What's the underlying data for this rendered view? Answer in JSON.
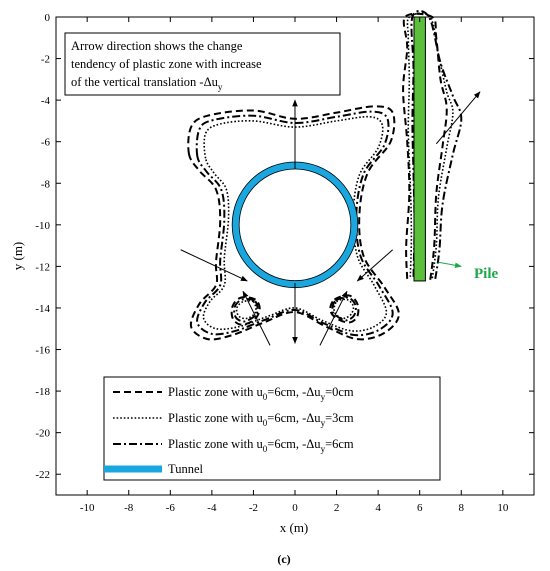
{
  "chart_data": {
    "type": "line",
    "title": "",
    "xlabel": "x (m)",
    "ylabel": "y (m)",
    "xlim": [
      -11.5,
      11.5
    ],
    "ylim": [
      -23,
      0
    ],
    "xticks": [
      -10,
      -8,
      -6,
      -4,
      -2,
      0,
      2,
      4,
      6,
      8,
      10
    ],
    "yticks": [
      0,
      -2,
      -4,
      -6,
      -8,
      -10,
      -12,
      -14,
      -16,
      -18,
      -20,
      -22
    ],
    "grid": false,
    "legend_position": "bottom-center",
    "note": {
      "lines": [
        "Arrow direction shows the change",
        "tendency of plastic zone with increase",
        "of the vertical translation -Δu"
      ],
      "subscript": "y"
    },
    "tunnel": {
      "center": [
        0,
        -10
      ],
      "radius": 3.0,
      "color": "#1aa7e0"
    },
    "pile": {
      "x": 6.0,
      "top": 0,
      "bottom": -12.7,
      "width": 0.55,
      "color": "#5cbf3c",
      "label": "Pile",
      "label_color": "#1fa84b"
    },
    "series": [
      {
        "name": "Plastic zone with u0=6cm, -Δuy=0cm",
        "legend_main": "Plastic zone with u",
        "legend_sub1": "0",
        "legend_mid": "=6cm, -Δu",
        "legend_sub2": "y",
        "legend_end": "=0cm",
        "style": "dashed",
        "outline": [
          [
            -5.1,
            -6.6
          ],
          [
            -5.0,
            -5.3
          ],
          [
            -4.2,
            -4.75
          ],
          [
            -2.0,
            -4.5
          ],
          [
            0.0,
            -4.9
          ],
          [
            2.0,
            -4.6
          ],
          [
            3.8,
            -4.3
          ],
          [
            4.7,
            -4.6
          ],
          [
            4.6,
            -6.0
          ],
          [
            3.5,
            -7.5
          ],
          [
            3.1,
            -9.5
          ],
          [
            3.3,
            -11.5
          ],
          [
            4.3,
            -13.0
          ],
          [
            5.0,
            -14.3
          ],
          [
            4.3,
            -15.2
          ],
          [
            3.0,
            -15.5
          ],
          [
            1.5,
            -14.9
          ],
          [
            0.0,
            -14.2
          ],
          [
            -1.5,
            -14.7
          ],
          [
            -3.0,
            -15.3
          ],
          [
            -4.2,
            -15.5
          ],
          [
            -5.0,
            -14.9
          ],
          [
            -4.6,
            -13.8
          ],
          [
            -3.8,
            -12.9
          ],
          [
            -3.8,
            -11.8
          ],
          [
            -3.6,
            -9.8
          ],
          [
            -3.8,
            -8.3
          ],
          [
            -4.6,
            -7.4
          ],
          [
            -5.1,
            -6.6
          ]
        ],
        "islands": [
          [
            [
              -1.9,
              -13.6
            ],
            [
              -2.6,
              -13.5
            ],
            [
              -3.0,
              -13.9
            ],
            [
              -3.0,
              -14.5
            ],
            [
              -2.6,
              -14.8
            ],
            [
              -2.0,
              -14.6
            ],
            [
              -1.7,
              -14.1
            ],
            [
              -1.9,
              -13.6
            ]
          ],
          [
            [
              1.9,
              -13.6
            ],
            [
              2.6,
              -13.4
            ],
            [
              3.0,
              -13.8
            ],
            [
              3.0,
              -14.4
            ],
            [
              2.6,
              -14.7
            ],
            [
              2.0,
              -14.5
            ],
            [
              1.7,
              -14.1
            ],
            [
              1.9,
              -13.6
            ]
          ]
        ],
        "pile_zone": [
          [
            5.4,
            -12.6
          ],
          [
            5.35,
            -11.0
          ],
          [
            5.5,
            -8.5
          ],
          [
            5.4,
            -6.0
          ],
          [
            5.2,
            -3.5
          ],
          [
            5.4,
            -1.5
          ],
          [
            5.3,
            0.0
          ],
          [
            6.6,
            0.0
          ],
          [
            6.8,
            -1.0
          ],
          [
            7.0,
            -3.0
          ],
          [
            7.3,
            -4.4
          ],
          [
            7.1,
            -6.2
          ],
          [
            6.8,
            -8.5
          ],
          [
            6.7,
            -11.0
          ],
          [
            6.5,
            -12.7
          ]
        ]
      },
      {
        "name": "Plastic zone with u0=6cm, -Δuy=3cm",
        "legend_main": "Plastic zone with u",
        "legend_sub1": "0",
        "legend_mid": "=6cm, -Δu",
        "legend_sub2": "y",
        "legend_end": "=3cm",
        "style": "dotted",
        "outline": [
          [
            -4.3,
            -6.8
          ],
          [
            -4.3,
            -5.6
          ],
          [
            -3.6,
            -5.15
          ],
          [
            -2.0,
            -5.0
          ],
          [
            0.0,
            -5.3
          ],
          [
            2.0,
            -5.0
          ],
          [
            3.6,
            -4.8
          ],
          [
            4.2,
            -5.2
          ],
          [
            4.0,
            -6.3
          ],
          [
            3.1,
            -7.6
          ],
          [
            2.8,
            -9.5
          ],
          [
            3.0,
            -11.5
          ],
          [
            3.8,
            -12.9
          ],
          [
            4.4,
            -14.2
          ],
          [
            3.8,
            -14.9
          ],
          [
            2.7,
            -15.1
          ],
          [
            1.3,
            -14.6
          ],
          [
            0.0,
            -14.0
          ],
          [
            -1.3,
            -14.4
          ],
          [
            -2.7,
            -14.9
          ],
          [
            -3.8,
            -15.0
          ],
          [
            -4.4,
            -14.5
          ],
          [
            -4.1,
            -13.7
          ],
          [
            -3.4,
            -12.9
          ],
          [
            -3.4,
            -11.6
          ],
          [
            -3.2,
            -9.7
          ],
          [
            -3.3,
            -8.3
          ],
          [
            -3.9,
            -7.5
          ],
          [
            -4.3,
            -6.8
          ]
        ],
        "islands": [
          [
            [
              -2.0,
              -13.7
            ],
            [
              -2.5,
              -13.7
            ],
            [
              -2.8,
              -14.0
            ],
            [
              -2.7,
              -14.4
            ],
            [
              -2.3,
              -14.5
            ],
            [
              -1.9,
              -14.2
            ],
            [
              -2.0,
              -13.7
            ]
          ],
          [
            [
              2.0,
              -13.7
            ],
            [
              2.5,
              -13.6
            ],
            [
              2.8,
              -13.9
            ],
            [
              2.7,
              -14.3
            ],
            [
              2.3,
              -14.5
            ],
            [
              1.9,
              -14.2
            ],
            [
              2.0,
              -13.7
            ]
          ]
        ],
        "pile_zone": [
          [
            5.55,
            -12.5
          ],
          [
            5.6,
            -10.5
          ],
          [
            5.55,
            -8.0
          ],
          [
            5.45,
            -5.5
          ],
          [
            5.5,
            -3.0
          ],
          [
            5.45,
            -1.0
          ],
          [
            5.5,
            0.0
          ],
          [
            6.5,
            0.0
          ],
          [
            6.9,
            -1.8
          ],
          [
            7.3,
            -3.6
          ],
          [
            7.6,
            -4.6
          ],
          [
            7.3,
            -6.3
          ],
          [
            6.9,
            -8.7
          ],
          [
            6.8,
            -11.0
          ],
          [
            6.6,
            -12.6
          ]
        ]
      },
      {
        "name": "Plastic zone with u0=6cm, -Δuy=6cm",
        "legend_main": "Plastic zone with u",
        "legend_sub1": "0",
        "legend_mid": "=6cm, -Δu",
        "legend_sub2": "y",
        "legend_end": "=6cm",
        "style": "dashdot",
        "outline": [
          [
            -4.7,
            -6.7
          ],
          [
            -4.6,
            -5.4
          ],
          [
            -3.9,
            -4.95
          ],
          [
            -2.0,
            -4.75
          ],
          [
            0.0,
            -5.1
          ],
          [
            2.0,
            -4.8
          ],
          [
            3.7,
            -4.55
          ],
          [
            4.45,
            -4.9
          ],
          [
            4.3,
            -6.15
          ],
          [
            3.3,
            -7.55
          ],
          [
            2.95,
            -9.5
          ],
          [
            3.15,
            -11.5
          ],
          [
            4.05,
            -12.95
          ],
          [
            4.7,
            -14.25
          ],
          [
            4.05,
            -15.05
          ],
          [
            2.85,
            -15.3
          ],
          [
            1.4,
            -14.75
          ],
          [
            0.0,
            -14.1
          ],
          [
            -1.4,
            -14.55
          ],
          [
            -2.85,
            -15.1
          ],
          [
            -4.0,
            -15.25
          ],
          [
            -4.7,
            -14.7
          ],
          [
            -4.35,
            -13.75
          ],
          [
            -3.6,
            -12.9
          ],
          [
            -3.6,
            -11.7
          ],
          [
            -3.4,
            -9.75
          ],
          [
            -3.55,
            -8.3
          ],
          [
            -4.25,
            -7.45
          ],
          [
            -4.7,
            -6.7
          ]
        ],
        "islands": [
          [
            [
              -1.95,
              -13.65
            ],
            [
              -2.55,
              -13.6
            ],
            [
              -2.9,
              -13.95
            ],
            [
              -2.85,
              -14.45
            ],
            [
              -2.45,
              -14.65
            ],
            [
              -1.95,
              -14.4
            ],
            [
              -1.8,
              -14.1
            ],
            [
              -1.95,
              -13.65
            ]
          ],
          [
            [
              1.95,
              -13.65
            ],
            [
              2.55,
              -13.5
            ],
            [
              2.9,
              -13.85
            ],
            [
              2.85,
              -14.35
            ],
            [
              2.45,
              -14.6
            ],
            [
              1.95,
              -14.35
            ],
            [
              1.8,
              -14.1
            ],
            [
              1.95,
              -13.65
            ]
          ]
        ],
        "pile_zone": [
          [
            5.7,
            -12.5
          ],
          [
            5.75,
            -10.0
          ],
          [
            5.7,
            -7.5
          ],
          [
            5.65,
            -5.0
          ],
          [
            5.7,
            -2.5
          ],
          [
            5.65,
            0.0
          ],
          [
            6.45,
            0.0
          ],
          [
            7.0,
            -2.2
          ],
          [
            7.6,
            -3.8
          ],
          [
            8.0,
            -4.9
          ],
          [
            7.6,
            -6.6
          ],
          [
            7.1,
            -9.0
          ],
          [
            6.95,
            -11.2
          ],
          [
            6.75,
            -12.6
          ]
        ]
      }
    ],
    "tunnel_legend": "Tunnel",
    "arrows": [
      {
        "from": [
          0,
          -7.3
        ],
        "to": [
          0,
          -4.0
        ]
      },
      {
        "from": [
          0,
          -12.8
        ],
        "to": [
          0,
          -15.7
        ]
      },
      {
        "from": [
          -5.5,
          -11.2
        ],
        "to": [
          -2.3,
          -12.7
        ]
      },
      {
        "from": [
          -1.2,
          -15.8
        ],
        "to": [
          -2.5,
          -13.2
        ]
      },
      {
        "from": [
          1.2,
          -15.8
        ],
        "to": [
          2.5,
          -13.2
        ]
      },
      {
        "from": [
          4.7,
          -11.2
        ],
        "to": [
          3.0,
          -12.7
        ]
      },
      {
        "from": [
          6.8,
          -6.1
        ],
        "to": [
          8.9,
          -3.6
        ]
      },
      {
        "from": [
          6.9,
          -11.8
        ],
        "to": [
          8.0,
          -12.0
        ]
      }
    ],
    "caption": "(c)"
  }
}
